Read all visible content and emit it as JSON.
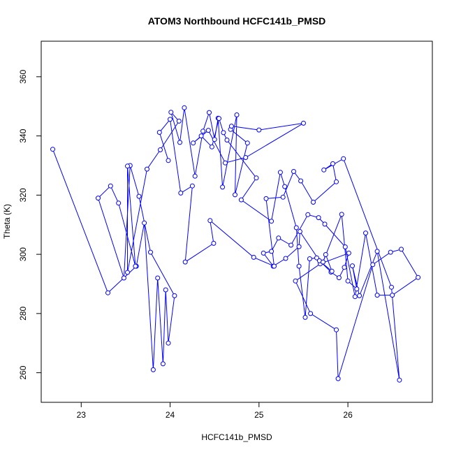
{
  "chart_data": {
    "type": "line",
    "title": "ATOM3 Northbound HCFC141b_PMSD",
    "xlabel": "HCFC141b_PMSD",
    "ylabel": "Theta (K)",
    "xlim": [
      22.55,
      26.95
    ],
    "ylim": [
      250,
      372
    ],
    "x_ticks": [
      23,
      24,
      25,
      26
    ],
    "y_ticks": [
      260,
      280,
      300,
      320,
      340,
      360
    ],
    "x_tick_labels": [
      "23",
      "24",
      "25",
      "26"
    ],
    "y_tick_labels": [
      "260",
      "280",
      "300",
      "320",
      "340",
      "360"
    ],
    "grid": false,
    "series_color": "#0000ff",
    "marker": "open-circle",
    "series": [
      {
        "x": [
          22.68,
          23.3,
          23.62,
          23.71,
          23.81,
          23.86,
          23.92,
          23.95,
          23.98,
          24.05,
          23.78,
          23.65,
          23.55,
          23.48,
          23.19,
          23.33,
          23.42,
          23.61,
          23.52,
          23.52,
          23.74,
          23.89,
          24.1,
          24.01,
          24.11,
          24.16,
          24.28,
          24.37,
          24.44,
          24.5,
          24.54,
          24.59,
          24.75,
          24.73,
          24.87,
          24.68,
          24.69,
          25.0,
          25.5,
          24.85,
          24.62,
          24.43,
          24.26,
          24.35,
          24.47,
          24.55,
          24.6,
          24.64,
          24.97,
          24.8,
          25.14,
          25.24,
          25.29,
          25.42,
          25.45,
          25.52,
          25.57,
          25.65,
          25.81,
          25.9,
          25.96,
          26.01,
          25.69,
          25.41,
          25.58,
          25.87,
          25.89,
          26.28,
          26.48,
          26.6,
          26.79,
          26.5,
          26.33,
          26.2,
          26.08,
          25.97,
          25.74,
          25.67,
          25.55,
          25.36,
          25.22,
          25.14,
          25.05,
          25.16,
          25.3,
          25.45,
          25.46,
          25.68,
          25.82,
          25.75,
          25.72,
          25.93,
          26.0,
          26.1,
          26.05,
          26.13,
          26.33,
          26.58,
          26.49,
          25.95,
          25.73,
          25.83,
          25.87,
          25.61,
          25.47,
          25.39,
          25.27,
          25.08,
          25.17,
          24.94,
          24.45,
          24.49,
          24.17,
          24.25,
          24.12,
          24.0,
          23.88,
          23.98
        ],
        "y": [
          335.5,
          287.0,
          296.0,
          310.6,
          261.0,
          292.0,
          263.0,
          288.0,
          270.0,
          286.0,
          300.7,
          319.6,
          330.0,
          292.0,
          319.0,
          323.1,
          317.3,
          296.0,
          329.8,
          293.9,
          328.8,
          335.3,
          345.0,
          348.0,
          337.8,
          349.5,
          326.4,
          341.6,
          347.9,
          338.8,
          346.0,
          322.7,
          347.1,
          320.1,
          337.6,
          342.2,
          343.3,
          342.0,
          344.3,
          332.7,
          330.9,
          341.9,
          337.6,
          340.0,
          336.3,
          345.9,
          341.1,
          338.6,
          325.8,
          318.4,
          311.2,
          327.7,
          322.9,
          309.0,
          296.0,
          278.7,
          298.5,
          298.8,
          294.0,
          292.1,
          295.6,
          300.4,
          296.8,
          291.0,
          280.0,
          274.5,
          258.0,
          296.5,
          300.7,
          301.7,
          292.2,
          286.2,
          286.2,
          307.2,
          285.7,
          302.5,
          310.2,
          312.4,
          313.4,
          303.1,
          305.5,
          301.0,
          300.4,
          296.0,
          298.6,
          302.6,
          307.7,
          297.8,
          294.3,
          299.9,
          297.4,
          313.5,
          291.0,
          288.3,
          296.1,
          286.0,
          301.0,
          257.5,
          288.9,
          332.3,
          328.5,
          330.6,
          324.5,
          317.6,
          324.8,
          328.0,
          319.3,
          318.8,
          296.0,
          299.0,
          311.4,
          303.7,
          297.4,
          323.1,
          320.7,
          345.6,
          341.2,
          331.7
        ]
      }
    ]
  }
}
